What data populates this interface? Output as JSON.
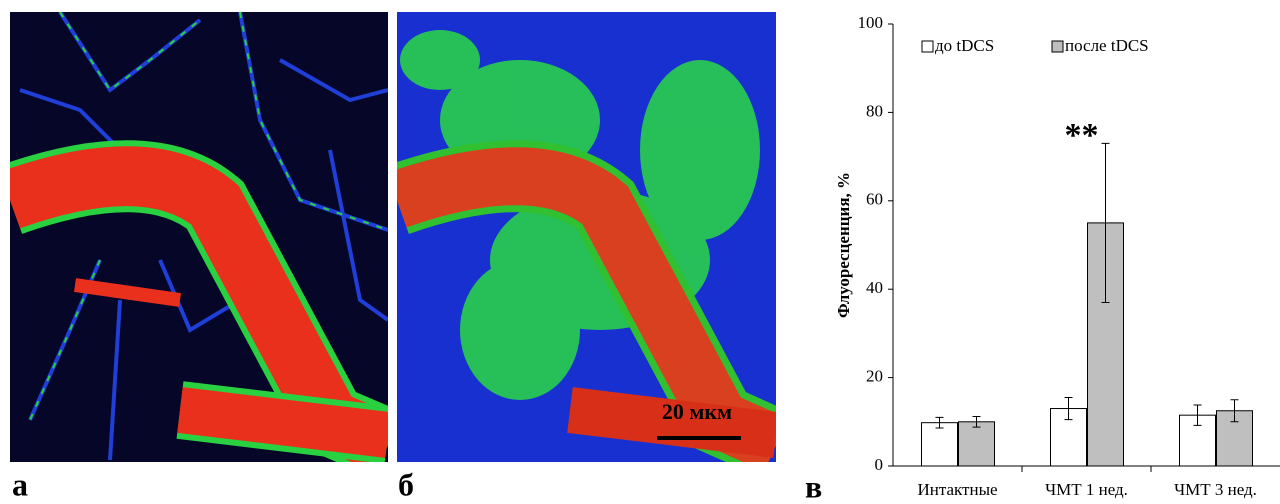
{
  "panel_labels": [
    "а",
    "б",
    "в"
  ],
  "scale_bar": "20 мкм",
  "chart_data": {
    "type": "bar",
    "ylabel": "Флуоресценция,  %",
    "annotation": "**",
    "annotation_category": 1,
    "categories": [
      "Интактные",
      "ЧМТ 1 нед.",
      "ЧМТ 3 нед."
    ],
    "series": [
      {
        "name": "до tDCS",
        "color": "#ffffff",
        "values": [
          9.8,
          13,
          11.5
        ],
        "errors": [
          1.2,
          2.5,
          2.3
        ]
      },
      {
        "name": "после tDCS",
        "color": "#bfbfbf",
        "values": [
          10,
          55,
          12.5
        ],
        "errors": [
          1.2,
          18,
          2.5
        ]
      }
    ],
    "ylim": [
      0,
      100
    ],
    "yticks": [
      0,
      20,
      40,
      60,
      80,
      100
    ],
    "legend": "top-left"
  }
}
